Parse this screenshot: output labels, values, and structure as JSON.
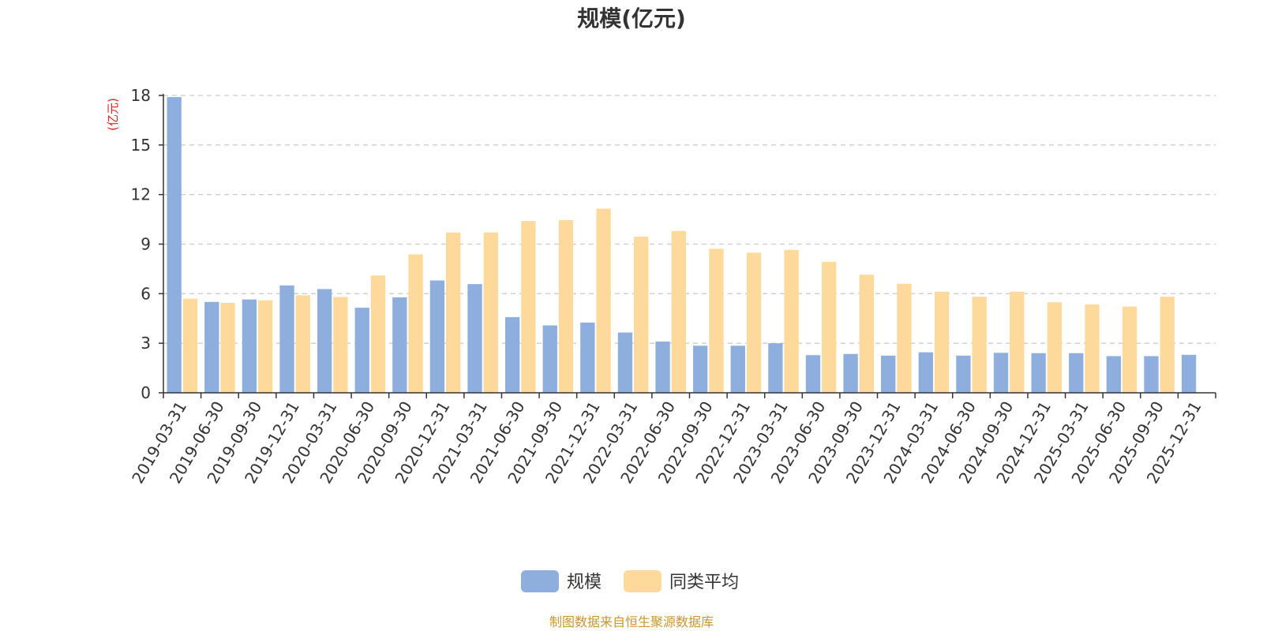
{
  "chart_data": {
    "type": "bar",
    "title": "规模(亿元)",
    "ylabel": "(亿元)",
    "ylim": [
      0,
      18
    ],
    "yticks": [
      "0",
      "3",
      "6",
      "9",
      "12",
      "15",
      "18"
    ],
    "grid": true,
    "legend_position": "bottom",
    "categories": [
      "2019-03-31",
      "2019-06-30",
      "2019-09-30",
      "2019-12-31",
      "2020-03-31",
      "2020-06-30",
      "2020-09-30",
      "2020-12-31",
      "2021-03-31",
      "2021-06-30",
      "2021-09-30",
      "2021-12-31",
      "2022-03-31",
      "2022-06-30",
      "2022-09-30",
      "2022-12-31",
      "2023-03-31",
      "2023-06-30",
      "2023-09-30",
      "2023-12-31",
      "2024-03-31",
      "2024-06-30",
      "2024-09-30",
      "2024-12-31",
      "2025-03-31",
      "2025-06-30",
      "2025-09-30",
      "2025-12-31"
    ],
    "series": [
      {
        "name": "规模",
        "color": "#8eaede",
        "values": [
          17.9,
          5.5,
          5.65,
          6.5,
          6.28,
          5.15,
          5.78,
          6.8,
          6.58,
          4.58,
          4.08,
          4.25,
          3.65,
          3.1,
          2.85,
          2.85,
          3.0,
          2.28,
          2.35,
          2.25,
          2.45,
          2.25,
          2.42,
          2.4,
          2.4,
          2.22,
          2.22,
          2.3
        ]
      },
      {
        "name": "同类平均",
        "color": "#fdd99b",
        "values": [
          5.7,
          5.45,
          5.6,
          5.9,
          5.8,
          7.1,
          8.38,
          9.7,
          9.7,
          10.4,
          10.45,
          11.15,
          9.45,
          9.8,
          8.72,
          8.48,
          8.65,
          7.92,
          7.15,
          6.6,
          6.12,
          5.82,
          6.12,
          5.48,
          5.35,
          5.22,
          5.82,
          null
        ]
      }
    ]
  },
  "colors": {
    "axis": "#333333",
    "grid": "#cccccc",
    "ylabel": "#e02020",
    "source": "#c8962e"
  },
  "source_note": "制图数据来自恒生聚源数据库"
}
